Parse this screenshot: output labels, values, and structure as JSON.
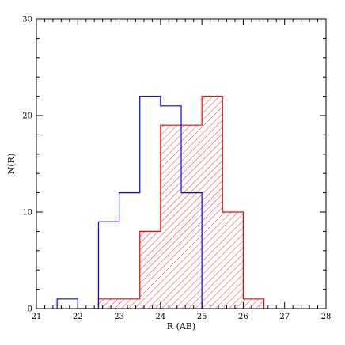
{
  "chart_data": {
    "type": "histogram",
    "xlabel": "R (AB)",
    "ylabel": "N(R)",
    "xlim": [
      21,
      28
    ],
    "ylim": [
      0,
      30
    ],
    "x_ticks": [
      "21",
      "22",
      "23",
      "24",
      "25",
      "26",
      "27",
      "28"
    ],
    "y_ticks": [
      "0",
      "10",
      "20",
      "30"
    ],
    "bin_width": 0.5,
    "grid": false,
    "legend": "none",
    "series": [
      {
        "style": "outline",
        "color": "#0000ff",
        "bins": [
          {
            "x0": 21.5,
            "x1": 22.0,
            "count": 1
          },
          {
            "x0": 22.0,
            "x1": 22.5,
            "count": 0
          },
          {
            "x0": 22.5,
            "x1": 23.0,
            "count": 9
          },
          {
            "x0": 23.0,
            "x1": 23.5,
            "count": 12
          },
          {
            "x0": 23.5,
            "x1": 24.0,
            "count": 22
          },
          {
            "x0": 24.0,
            "x1": 24.5,
            "count": 21
          },
          {
            "x0": 24.5,
            "x1": 25.0,
            "count": 12
          }
        ]
      },
      {
        "style": "hatched",
        "color": "#ff0000",
        "bins": [
          {
            "x0": 22.5,
            "x1": 23.0,
            "count": 1
          },
          {
            "x0": 23.0,
            "x1": 23.5,
            "count": 1
          },
          {
            "x0": 23.5,
            "x1": 24.0,
            "count": 8
          },
          {
            "x0": 24.0,
            "x1": 24.5,
            "count": 19
          },
          {
            "x0": 24.5,
            "x1": 25.0,
            "count": 19
          },
          {
            "x0": 25.0,
            "x1": 25.5,
            "count": 22
          },
          {
            "x0": 25.5,
            "x1": 26.0,
            "count": 10
          },
          {
            "x0": 26.0,
            "x1": 26.5,
            "count": 1
          }
        ]
      }
    ]
  }
}
